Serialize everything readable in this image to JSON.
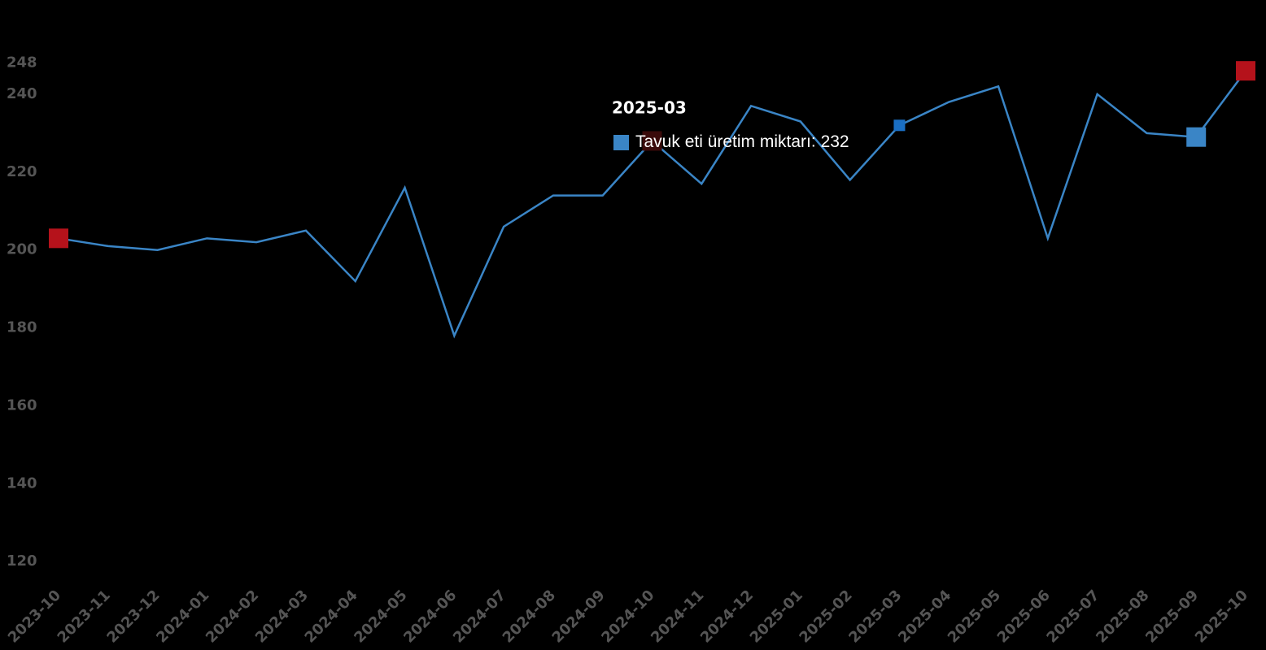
{
  "chart_data": {
    "type": "line",
    "categories": [
      "2023-10",
      "2023-11",
      "2023-12",
      "2024-01",
      "2024-02",
      "2024-03",
      "2024-04",
      "2024-05",
      "2024-06",
      "2024-07",
      "2024-08",
      "2024-09",
      "2024-10",
      "2024-11",
      "2024-12",
      "2025-01",
      "2025-02",
      "2025-03",
      "2025-04",
      "2025-05",
      "2025-06",
      "2025-07",
      "2025-08",
      "2025-09",
      "2025-10"
    ],
    "series": [
      {
        "name": "Tavuk eti üretim miktarı",
        "color": "#3a85c6",
        "values": [
          203,
          201,
          200,
          203,
          202,
          205,
          192,
          216,
          178,
          206,
          214,
          214,
          228,
          217,
          237,
          233,
          218,
          232,
          238,
          242,
          203,
          240,
          230,
          229,
          246
        ]
      }
    ],
    "ylim": [
      116,
      248
    ],
    "yticks": [
      120,
      140,
      160,
      180,
      200,
      220,
      240,
      248
    ],
    "markers": [
      {
        "index": 0,
        "color": "#b5121b"
      },
      {
        "index": 12,
        "color": "#3a0a0a"
      },
      {
        "index": 23,
        "color": "#3a85c6"
      },
      {
        "index": 24,
        "color": "#b5121b"
      }
    ],
    "active_index": 17
  }
}
